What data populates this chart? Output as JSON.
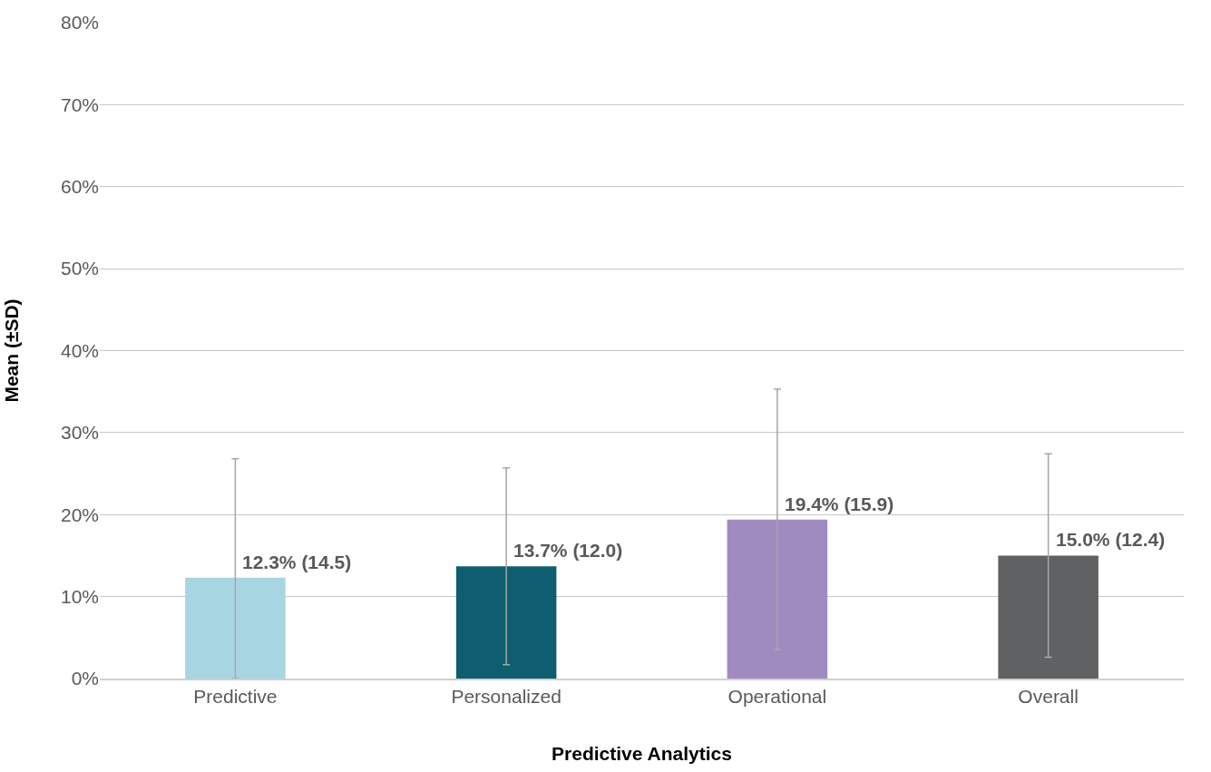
{
  "chart_data": {
    "type": "bar",
    "xlabel": "Predictive Analytics",
    "ylabel": "Mean (±SD)",
    "categories": [
      "Predictive",
      "Personalized",
      "Operational",
      "Overall"
    ],
    "values": [
      12.3,
      13.7,
      19.4,
      15.0
    ],
    "colors": [
      "#a8d5e2",
      "#0e5e6f",
      "#a08bc0",
      "#606163"
    ],
    "errors": [
      [
        0,
        26.8
      ],
      12.0,
      15.9,
      12.4
    ],
    "value_labels": [
      "12.3% (14.5)",
      "13.7% (12.0)",
      "19.4% (15.9)",
      "15.0% (12.4)"
    ],
    "ylim": [
      0,
      80
    ],
    "yticks": [
      {
        "value": 0,
        "label": "0%"
      },
      {
        "value": 10,
        "label": "10%"
      },
      {
        "value": 20,
        "label": "20%"
      },
      {
        "value": 30,
        "label": "30%"
      },
      {
        "value": 40,
        "label": "40%"
      },
      {
        "value": 50,
        "label": "50%"
      },
      {
        "value": 60,
        "label": "60%"
      },
      {
        "value": 70,
        "label": "70%"
      },
      {
        "value": 80,
        "label": "80%"
      }
    ],
    "grid": "y"
  }
}
